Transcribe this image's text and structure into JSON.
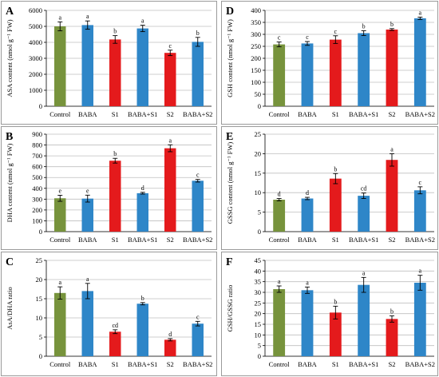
{
  "chart_data": [
    {
      "panel": "A",
      "type": "bar",
      "ylabel": "ASA content (nmol g⁻¹ FW)",
      "ylim": [
        0,
        6000
      ],
      "yticks": [
        "0",
        "1000",
        "2000",
        "3000",
        "4000",
        "5000",
        "6000"
      ],
      "grid": true,
      "categories": [
        "Control",
        "BABA",
        "S1",
        "BABA+S1",
        "S2",
        "BABA+S2"
      ],
      "values": [
        5000,
        5080,
        4180,
        4870,
        3340,
        4030
      ],
      "errors": [
        280,
        260,
        240,
        200,
        170,
        280
      ],
      "letters": [
        "a",
        "a",
        "b",
        "a",
        "c",
        "b"
      ],
      "colors": [
        "#77933c",
        "#2e86c8",
        "#e41a1c",
        "#2e86c8",
        "#e41a1c",
        "#2e86c8"
      ]
    },
    {
      "panel": "D",
      "type": "bar",
      "ylabel": "GSH content (nmol g⁻¹ FW)",
      "ylim": [
        0,
        400
      ],
      "yticks": [
        "0",
        "50",
        "100",
        "150",
        "200",
        "250",
        "300",
        "350",
        "400"
      ],
      "grid": true,
      "categories": [
        "Control",
        "BABA",
        "S1",
        "BABA+S1",
        "S2",
        "BABA+S2"
      ],
      "values": [
        258,
        262,
        278,
        305,
        320,
        367
      ],
      "errors": [
        10,
        8,
        16,
        10,
        4,
        5
      ],
      "letters": [
        "c",
        "c",
        "c",
        "b",
        "b",
        "a"
      ],
      "colors": [
        "#77933c",
        "#2e86c8",
        "#e41a1c",
        "#2e86c8",
        "#e41a1c",
        "#2e86c8"
      ]
    },
    {
      "panel": "B",
      "type": "bar",
      "ylabel": "DHA content (nmol g⁻¹ FW)",
      "ylim": [
        0,
        900
      ],
      "yticks": [
        "0",
        "100",
        "200",
        "300",
        "400",
        "500",
        "600",
        "700",
        "800",
        "900"
      ],
      "grid": true,
      "categories": [
        "Control",
        "BABA",
        "S1",
        "BABA+S1",
        "S2",
        "BABA+S2"
      ],
      "values": [
        308,
        305,
        655,
        355,
        770,
        470
      ],
      "errors": [
        28,
        32,
        22,
        8,
        32,
        12
      ],
      "letters": [
        "e",
        "e",
        "b",
        "d",
        "a",
        "c"
      ],
      "colors": [
        "#77933c",
        "#2e86c8",
        "#e41a1c",
        "#2e86c8",
        "#e41a1c",
        "#2e86c8"
      ]
    },
    {
      "panel": "E",
      "type": "bar",
      "ylabel": "GSSG content (nmol g⁻¹ FW)",
      "ylim": [
        0,
        25
      ],
      "yticks": [
        "0",
        "5",
        "10",
        "15",
        "20",
        "25"
      ],
      "grid": true,
      "categories": [
        "Control",
        "BABA",
        "S1",
        "BABA+S1",
        "S2",
        "BABA+S2"
      ],
      "values": [
        8.2,
        8.5,
        13.6,
        9.2,
        18.4,
        10.6
      ],
      "errors": [
        0.3,
        0.3,
        1.3,
        0.7,
        1.6,
        0.9
      ],
      "letters": [
        "d",
        "d",
        "b",
        "cd",
        "a",
        "c"
      ],
      "colors": [
        "#77933c",
        "#2e86c8",
        "#e41a1c",
        "#2e86c8",
        "#e41a1c",
        "#2e86c8"
      ]
    },
    {
      "panel": "C",
      "type": "bar",
      "ylabel": "AsA/DHA ratio",
      "ylim": [
        0,
        25
      ],
      "yticks": [
        "0",
        "5",
        "10",
        "15",
        "20",
        "25"
      ],
      "grid": true,
      "categories": [
        "Control",
        "BABA",
        "S1",
        "BABA+S1",
        "S2",
        "BABA+S2"
      ],
      "values": [
        16.5,
        17.0,
        6.4,
        13.7,
        4.3,
        8.5
      ],
      "errors": [
        1.6,
        2.0,
        0.5,
        0.3,
        0.3,
        0.6
      ],
      "letters": [
        "a",
        "a",
        "cd",
        "b",
        "d",
        "c"
      ],
      "colors": [
        "#77933c",
        "#2e86c8",
        "#e41a1c",
        "#2e86c8",
        "#e41a1c",
        "#2e86c8"
      ]
    },
    {
      "panel": "F",
      "type": "bar",
      "ylabel": "GSH/GSSG ratio",
      "ylim": [
        0,
        45
      ],
      "yticks": [
        "0",
        "5",
        "10",
        "15",
        "20",
        "25",
        "30",
        "35",
        "40",
        "45"
      ],
      "grid": true,
      "categories": [
        "Control",
        "BABA",
        "S1",
        "BABA+S1",
        "S2",
        "BABA+S2"
      ],
      "values": [
        31.5,
        31.0,
        20.5,
        33.5,
        17.5,
        34.5
      ],
      "errors": [
        1.5,
        1.5,
        3.0,
        3.5,
        1.5,
        3.5
      ],
      "letters": [
        "a",
        "a",
        "b",
        "a",
        "b",
        "a"
      ],
      "colors": [
        "#77933c",
        "#2e86c8",
        "#e41a1c",
        "#2e86c8",
        "#e41a1c",
        "#2e86c8"
      ]
    }
  ]
}
